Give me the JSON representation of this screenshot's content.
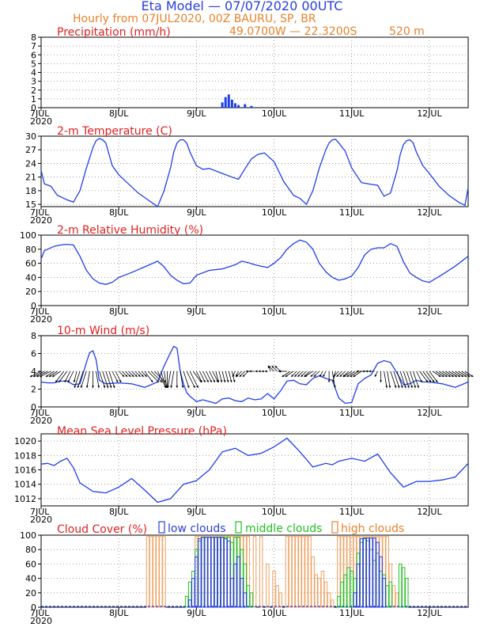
{
  "header": {
    "title": "Eta Model — 07/07/2020 00UTC",
    "subtitle": "Hourly from 07JUL2020, 00Z  BAURU, SP, BR",
    "location": "49.0700W — 22.3200S",
    "elevation": "520  m"
  },
  "x_axis": {
    "start_label": "7JUL",
    "start_year": "2020",
    "day_labels": [
      "8JUL",
      "9JUL",
      "10JUL",
      "11JUL",
      "12JUL"
    ],
    "hours_total": 132
  },
  "colors": {
    "series_blue": "#1f3fe8",
    "title_red": "#e02020",
    "header_orange": "#e8822a",
    "header_blue": "#2a3fd8",
    "high_cloud": "#f0a060",
    "mid_cloud": "#22c022",
    "low_cloud": "#2a3fd8",
    "grid": "#888888"
  },
  "chart_data": [
    {
      "id": "precip",
      "type": "bar",
      "title": "Precipitation (mm/h)",
      "ylim": [
        0,
        8
      ],
      "yticks": [
        0,
        1,
        2,
        3,
        4,
        5,
        6,
        7,
        8
      ],
      "x_hours": [
        56,
        57,
        58,
        59,
        60,
        61,
        63,
        65
      ],
      "values": [
        0.6,
        1.2,
        1.5,
        0.9,
        0.5,
        0.3,
        0.4,
        0.2
      ]
    },
    {
      "id": "temp",
      "type": "line",
      "title": "2-m Temperature (C)",
      "ylim": [
        14.5,
        30
      ],
      "yticks": [
        15,
        18,
        21,
        24,
        27,
        30
      ],
      "x": [
        0,
        1,
        3,
        5,
        8,
        10,
        12,
        14,
        16,
        17,
        18,
        19,
        20,
        21,
        22,
        24,
        27,
        30,
        33,
        36,
        38,
        40,
        41,
        42,
        43,
        44,
        45,
        46,
        48,
        50,
        52,
        56,
        59,
        61,
        63,
        65,
        67,
        69,
        72,
        75,
        78,
        80,
        82,
        84,
        86,
        88,
        89,
        90,
        91,
        92,
        94,
        96,
        99,
        102,
        104,
        106,
        108,
        110,
        111,
        112,
        113,
        114,
        115,
        116,
        118,
        120,
        123,
        126,
        129,
        131,
        132
      ],
      "y": [
        22.5,
        19.5,
        19,
        17,
        16,
        15.5,
        18,
        23,
        27.5,
        29,
        29.5,
        29.2,
        28.5,
        26,
        23.5,
        21.5,
        19.5,
        17.5,
        16,
        14.5,
        18,
        23,
        26.5,
        28.5,
        29.2,
        29.2,
        28.5,
        26.5,
        23.5,
        22.7,
        22.9,
        21.8,
        21,
        20.5,
        22.8,
        25,
        26,
        26.3,
        24.4,
        20,
        17,
        16.3,
        15,
        18,
        23,
        27,
        28.5,
        29.2,
        29.3,
        28.5,
        26.7,
        23,
        19.8,
        19.4,
        19.2,
        16.8,
        17.5,
        22.4,
        26,
        28.2,
        29,
        29.2,
        28.5,
        26.5,
        23.5,
        21.8,
        19,
        17,
        15.5,
        14.8,
        18.7
      ]
    },
    {
      "id": "rh",
      "type": "line",
      "title": "2-m Relative Humidity (%)",
      "ylim": [
        0,
        100
      ],
      "yticks": [
        0,
        20,
        40,
        60,
        80,
        100
      ],
      "x": [
        0,
        1,
        2,
        4,
        6,
        8,
        10,
        12,
        14,
        16,
        18,
        20,
        22,
        24,
        28,
        32,
        36,
        38,
        40,
        42,
        44,
        46,
        48,
        52,
        56,
        60,
        62,
        64,
        66,
        68,
        70,
        72,
        74,
        76,
        78,
        80,
        82,
        84,
        86,
        88,
        90,
        92,
        94,
        96,
        98,
        100,
        102,
        104,
        106,
        108,
        110,
        112,
        114,
        116,
        118,
        120,
        124,
        128,
        132
      ],
      "y": [
        66,
        78,
        80,
        84,
        86,
        87,
        86,
        70,
        50,
        38,
        32,
        30,
        33,
        40,
        47,
        55,
        63,
        55,
        43,
        36,
        31,
        32,
        43,
        50,
        52,
        58,
        63,
        61,
        58,
        56,
        54,
        60,
        68,
        80,
        88,
        93,
        90,
        80,
        60,
        48,
        40,
        36,
        38,
        42,
        54,
        72,
        80,
        82,
        82,
        88,
        84,
        62,
        46,
        40,
        35,
        33,
        44,
        56,
        70
      ]
    },
    {
      "id": "wind",
      "type": "line",
      "title": "10-m Wind (m/s)",
      "ylim": [
        0,
        8
      ],
      "yticks": [
        0,
        2,
        4,
        6,
        8
      ],
      "x": [
        0,
        2,
        4,
        6,
        8,
        10,
        12,
        14,
        15,
        16,
        17,
        18,
        20,
        24,
        28,
        32,
        36,
        38,
        40,
        41,
        42,
        43,
        44,
        45,
        46,
        48,
        50,
        52,
        54,
        56,
        58,
        60,
        62,
        64,
        66,
        68,
        70,
        72,
        74,
        76,
        78,
        80,
        82,
        84,
        86,
        88,
        90,
        92,
        94,
        96,
        98,
        100,
        102,
        104,
        106,
        108,
        110,
        112,
        114,
        116,
        118,
        120,
        124,
        128,
        132
      ],
      "y": [
        2.8,
        2.7,
        2.7,
        2.9,
        2.9,
        2.5,
        2.6,
        5,
        6.1,
        6.3,
        5.3,
        3.0,
        2.6,
        2.7,
        2.6,
        2.2,
        2.8,
        4.6,
        6.1,
        6.8,
        6.6,
        4.0,
        2.6,
        1.6,
        1.2,
        0.6,
        0.8,
        0.6,
        0.4,
        0.9,
        1.0,
        0.7,
        0.6,
        1.0,
        0.8,
        0.9,
        1.5,
        0.9,
        1.8,
        2.9,
        3.0,
        2.6,
        2.5,
        3.2,
        3.5,
        3.2,
        3.0,
        1.0,
        0.4,
        0.5,
        2.6,
        3.2,
        3.6,
        4.9,
        5.2,
        5.0,
        3.8,
        2.5,
        2.6,
        3.0,
        2.8,
        2.8,
        2.6,
        2.2,
        2.8
      ]
    },
    {
      "id": "mslp",
      "type": "line",
      "title": "Mean Sea Level Pressure (hPa)",
      "ylim": [
        1011,
        1021
      ],
      "yticks": [
        1012,
        1014,
        1016,
        1018,
        1020
      ],
      "x": [
        0,
        2,
        4,
        6,
        8,
        10,
        12,
        16,
        20,
        24,
        28,
        32,
        36,
        40,
        44,
        48,
        52,
        56,
        60,
        64,
        68,
        72,
        76,
        80,
        84,
        88,
        90,
        92,
        96,
        100,
        104,
        108,
        112,
        116,
        120,
        124,
        128,
        132
      ],
      "y": [
        1016.8,
        1016.9,
        1016.6,
        1017.2,
        1017.6,
        1016.3,
        1014.2,
        1013.0,
        1012.8,
        1013.6,
        1014.8,
        1013.2,
        1011.5,
        1012.0,
        1014.0,
        1014.5,
        1016.0,
        1018.5,
        1019.0,
        1018.0,
        1018.3,
        1019.2,
        1020.4,
        1018.5,
        1016.4,
        1016.9,
        1016.7,
        1017.2,
        1017.6,
        1017.2,
        1018.2,
        1015.6,
        1013.6,
        1014.4,
        1014.4,
        1014.6,
        1015.0,
        1016.9
      ]
    },
    {
      "id": "clouds",
      "type": "bar",
      "title": "Cloud Cover (%)",
      "legend": [
        "low clouds",
        "middle clouds",
        "high clouds"
      ],
      "ylim": [
        0,
        100
      ],
      "yticks": [
        0,
        20,
        40,
        60,
        80,
        100
      ],
      "high": [
        [
          33,
          98
        ],
        [
          34,
          98
        ],
        [
          35,
          98
        ],
        [
          36,
          98
        ],
        [
          37,
          98
        ],
        [
          38,
          98
        ],
        [
          48,
          98
        ],
        [
          49,
          98
        ],
        [
          50,
          98
        ],
        [
          51,
          98
        ],
        [
          52,
          98
        ],
        [
          53,
          98
        ],
        [
          54,
          98
        ],
        [
          55,
          98
        ],
        [
          56,
          98
        ],
        [
          57,
          98
        ],
        [
          58,
          98
        ],
        [
          59,
          98
        ],
        [
          60,
          98
        ],
        [
          61,
          98
        ],
        [
          62,
          98
        ],
        [
          63,
          98
        ],
        [
          64,
          98
        ],
        [
          66,
          98
        ],
        [
          68,
          98
        ],
        [
          70,
          60
        ],
        [
          72,
          50
        ],
        [
          73,
          30
        ],
        [
          74,
          20
        ],
        [
          76,
          98
        ],
        [
          77,
          98
        ],
        [
          78,
          98
        ],
        [
          79,
          98
        ],
        [
          80,
          98
        ],
        [
          81,
          98
        ],
        [
          82,
          98
        ],
        [
          83,
          98
        ],
        [
          84,
          70
        ],
        [
          85,
          45
        ],
        [
          86,
          40
        ],
        [
          87,
          50
        ],
        [
          88,
          35
        ],
        [
          89,
          20
        ],
        [
          90,
          10
        ],
        [
          92,
          98
        ],
        [
          93,
          98
        ],
        [
          94,
          98
        ],
        [
          95,
          98
        ],
        [
          96,
          98
        ],
        [
          97,
          98
        ],
        [
          98,
          98
        ],
        [
          99,
          98
        ],
        [
          100,
          98
        ],
        [
          101,
          98
        ],
        [
          102,
          98
        ],
        [
          103,
          98
        ],
        [
          104,
          98
        ],
        [
          105,
          98
        ],
        [
          106,
          98
        ],
        [
          107,
          98
        ],
        [
          108,
          60
        ],
        [
          109,
          30
        ],
        [
          110,
          20
        ]
      ],
      "middle": [
        [
          45,
          15
        ],
        [
          46,
          35
        ],
        [
          47,
          50
        ],
        [
          48,
          80
        ],
        [
          49,
          92
        ],
        [
          50,
          97
        ],
        [
          51,
          97
        ],
        [
          52,
          97
        ],
        [
          53,
          97
        ],
        [
          54,
          97
        ],
        [
          55,
          97
        ],
        [
          56,
          97
        ],
        [
          57,
          97
        ],
        [
          58,
          97
        ],
        [
          59,
          90
        ],
        [
          60,
          97
        ],
        [
          61,
          97
        ],
        [
          62,
          80
        ],
        [
          63,
          60
        ],
        [
          64,
          30
        ],
        [
          65,
          20
        ],
        [
          92,
          15
        ],
        [
          93,
          35
        ],
        [
          94,
          45
        ],
        [
          95,
          55
        ],
        [
          96,
          50
        ],
        [
          97,
          40
        ],
        [
          98,
          75
        ],
        [
          99,
          90
        ],
        [
          100,
          95
        ],
        [
          101,
          92
        ],
        [
          102,
          80
        ],
        [
          103,
          65
        ],
        [
          104,
          75
        ],
        [
          105,
          50
        ],
        [
          106,
          45
        ],
        [
          107,
          30
        ],
        [
          108,
          35
        ],
        [
          111,
          60
        ],
        [
          112,
          55
        ],
        [
          113,
          40
        ]
      ],
      "low": [
        [
          46,
          10
        ],
        [
          47,
          40
        ],
        [
          48,
          70
        ],
        [
          49,
          95
        ],
        [
          50,
          97
        ],
        [
          51,
          97
        ],
        [
          52,
          97
        ],
        [
          53,
          97
        ],
        [
          54,
          97
        ],
        [
          55,
          97
        ],
        [
          56,
          97
        ],
        [
          57,
          95
        ],
        [
          58,
          92
        ],
        [
          59,
          40
        ],
        [
          60,
          60
        ],
        [
          61,
          70
        ],
        [
          62,
          40
        ],
        [
          63,
          20
        ],
        [
          97,
          20
        ],
        [
          98,
          60
        ],
        [
          99,
          95
        ],
        [
          100,
          96
        ],
        [
          101,
          96
        ],
        [
          102,
          96
        ],
        [
          103,
          96
        ],
        [
          104,
          90
        ],
        [
          105,
          70
        ],
        [
          106,
          40
        ]
      ]
    }
  ],
  "wind_arrows": {
    "hours": [
      0,
      1,
      2,
      3,
      4,
      5,
      6,
      7,
      8,
      9,
      10,
      11,
      12,
      13,
      14,
      15,
      16,
      17,
      18,
      19,
      20,
      21,
      22,
      23,
      24,
      25,
      26,
      27,
      28,
      29,
      30,
      31,
      32,
      33,
      34,
      35,
      36,
      37,
      38,
      39,
      40,
      41,
      42,
      43,
      44,
      45,
      46,
      47,
      48,
      49,
      50,
      51,
      52,
      53,
      54,
      55,
      56,
      57,
      58,
      59,
      60,
      61,
      62,
      63,
      64,
      65,
      66,
      67,
      68,
      69,
      70,
      71,
      72,
      73,
      74,
      75,
      76,
      77,
      78,
      79,
      80,
      81,
      82,
      83,
      84,
      85,
      86,
      87,
      88,
      89,
      90,
      91,
      92,
      93,
      94,
      95,
      96,
      97,
      98,
      99,
      100,
      101,
      102,
      103,
      104,
      105,
      106,
      107,
      108,
      109,
      110,
      111,
      112,
      113,
      114,
      115,
      116,
      117,
      118,
      119,
      120,
      121,
      122,
      123,
      124,
      125,
      126,
      127,
      128,
      129,
      130,
      131
    ],
    "u": [
      -4,
      -4,
      -4,
      -4,
      -3,
      -3,
      -3,
      -3,
      -3,
      -2,
      -2,
      -1,
      -2,
      -2,
      -2,
      -1,
      0,
      1,
      2,
      2,
      2,
      2,
      2,
      2,
      2,
      2,
      2,
      2,
      2,
      2,
      2,
      2,
      3,
      4,
      4,
      4,
      3,
      2,
      1,
      0,
      -1,
      -1,
      0,
      1,
      2,
      3,
      3,
      3,
      2,
      2,
      2,
      2,
      2,
      2,
      1,
      1,
      1,
      1,
      1,
      1,
      -1,
      -1,
      -2,
      -2,
      -2,
      -2,
      -2,
      -1,
      -1,
      -1,
      -1,
      -1,
      -2,
      -2,
      -2,
      -2,
      -3,
      -3,
      -3,
      -2,
      -2,
      -2,
      -2,
      -2,
      -3,
      -2,
      -2,
      -1,
      -1,
      0,
      1,
      -1,
      -2,
      -2,
      -2,
      -2,
      -3,
      -3,
      -3,
      -3,
      -3,
      -2,
      -2,
      -2,
      -1,
      0,
      1,
      1,
      2,
      2,
      2,
      2,
      2,
      2,
      2,
      2,
      2,
      3,
      3,
      3,
      3,
      3,
      3,
      3,
      3,
      3,
      3,
      3,
      3,
      3,
      3,
      3,
      3,
      3
    ],
    "v": [
      -1,
      -1,
      -1,
      -1,
      -1,
      -1,
      -1,
      -2,
      -2,
      -2,
      -2,
      -2,
      -3,
      -3,
      -3,
      -3,
      -3,
      -3,
      -3,
      -3,
      -3,
      -3,
      -2,
      -2,
      -1,
      -1,
      -1,
      -1,
      -1,
      -1,
      -1,
      -1,
      -2,
      -2,
      -2,
      -2,
      -3,
      -3,
      -3,
      -3,
      -3,
      -3,
      -3,
      -3,
      -3,
      -3,
      -3,
      -2,
      -2,
      -2,
      -2,
      -2,
      -2,
      -2,
      -2,
      -2,
      -2,
      -2,
      -2,
      -2,
      -1,
      -1,
      -1,
      -1,
      -1,
      0,
      0,
      0,
      0,
      0,
      0,
      1,
      1,
      1,
      1,
      0,
      0,
      -1,
      -1,
      -1,
      -1,
      -1,
      -1,
      -1,
      -1,
      -1,
      -1,
      -1,
      -1,
      -2,
      -3,
      -2,
      -1,
      -1,
      -1,
      -1,
      -1,
      -1,
      -1,
      -1,
      0,
      0,
      0,
      0,
      -1,
      -2,
      -3,
      -3,
      -3,
      -3,
      -3,
      -3,
      -3,
      -3,
      -3,
      -3,
      -2,
      -2,
      -2,
      -2,
      -2,
      -1,
      -1,
      -1,
      -1,
      -1,
      -1,
      -1,
      -1,
      -1,
      -1,
      -1,
      -1
    ]
  }
}
